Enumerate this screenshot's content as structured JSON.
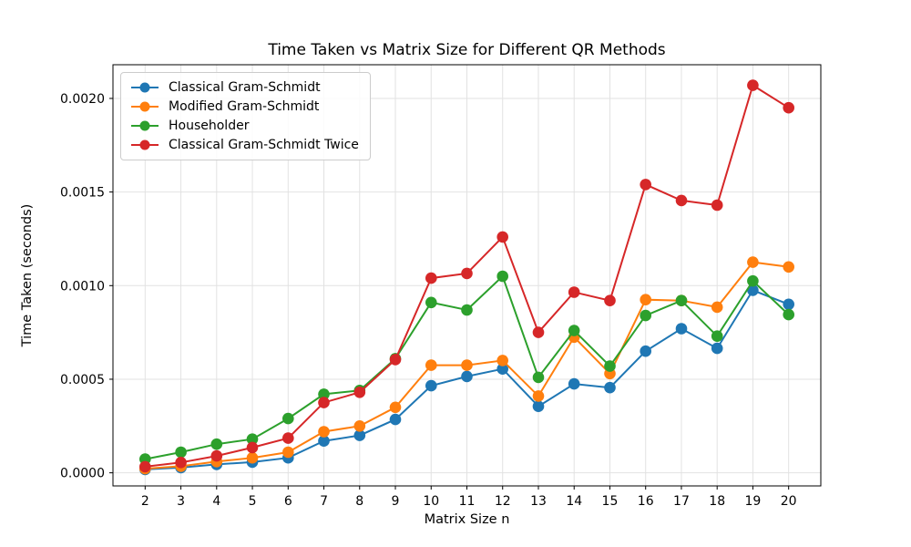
{
  "figure": {
    "background": "#ffffff"
  },
  "chart_data": {
    "type": "line",
    "title": "Time Taken vs Matrix Size for Different QR Methods",
    "xlabel": "Matrix Size n",
    "ylabel": "Time Taken (seconds)",
    "grid": true,
    "legend_position": "upper left",
    "x": [
      2,
      3,
      4,
      5,
      6,
      7,
      8,
      9,
      10,
      11,
      12,
      13,
      14,
      15,
      16,
      17,
      18,
      19,
      20
    ],
    "xticks": [
      2,
      3,
      4,
      5,
      6,
      7,
      8,
      9,
      10,
      11,
      12,
      13,
      14,
      15,
      16,
      17,
      18,
      19,
      20
    ],
    "yticks": [
      0.0,
      0.0005,
      0.001,
      0.0015,
      0.002
    ],
    "ytick_labels": [
      "0.0000",
      "0.0005",
      "0.0010",
      "0.0015",
      "0.0020"
    ],
    "xlim": [
      1.1,
      20.9
    ],
    "ylim": [
      -7e-05,
      0.00218
    ],
    "series": [
      {
        "name": "Classical Gram-Schmidt",
        "color": "#1f77b4",
        "values": [
          1.8e-05,
          2.8e-05,
          4.5e-05,
          5.7e-05,
          8e-05,
          0.00017,
          0.0002,
          0.000285,
          0.000465,
          0.000515,
          0.000555,
          0.000355,
          0.000475,
          0.000455,
          0.00065,
          0.00077,
          0.000665,
          0.000975,
          0.0009
        ]
      },
      {
        "name": "Modified Gram-Schmidt",
        "color": "#ff7f0e",
        "values": [
          2.2e-05,
          3.5e-05,
          6e-05,
          8e-05,
          0.00011,
          0.00022,
          0.00025,
          0.00035,
          0.000575,
          0.000575,
          0.0006,
          0.00041,
          0.000725,
          0.00053,
          0.000925,
          0.00092,
          0.000885,
          0.001125,
          0.0011
        ]
      },
      {
        "name": "Householder",
        "color": "#2ca02c",
        "values": [
          7.3e-05,
          0.00011,
          0.000153,
          0.00018,
          0.00029,
          0.00042,
          0.00044,
          0.00061,
          0.00091,
          0.00087,
          0.00105,
          0.00051,
          0.00076,
          0.00057,
          0.00084,
          0.00092,
          0.00073,
          0.001025,
          0.000845
        ]
      },
      {
        "name": "Classical Gram-Schmidt Twice",
        "color": "#d62728",
        "values": [
          3.3e-05,
          5.5e-05,
          9e-05,
          0.000135,
          0.000185,
          0.000375,
          0.00043,
          0.000605,
          0.00104,
          0.001065,
          0.00126,
          0.00075,
          0.000965,
          0.00092,
          0.00154,
          0.001455,
          0.00143,
          0.00207,
          0.00195
        ]
      }
    ]
  }
}
